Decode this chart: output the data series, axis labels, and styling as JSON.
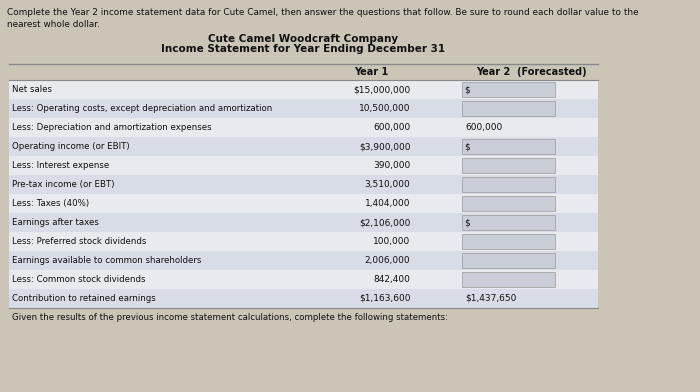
{
  "header_line1": "Complete the Year 2 income statement data for Cute Camel, then answer the questions that follow. Be sure to round each dollar value to the",
  "header_line2": "nearest whole dollar.",
  "company_title": "Cute Camel Woodcraft Company",
  "statement_title": "Income Statement for Year Ending December 31",
  "col_year1": "Year 1",
  "col_year2": "Year 2  (Forecasted)",
  "rows": [
    {
      "label": "Net sales",
      "year1": "$15,000,000",
      "year2": "$",
      "shade": false,
      "box": true,
      "dollar_prefix": true
    },
    {
      "label": "Less: Operating costs, except depreciation and amortization",
      "year1": "10,500,000",
      "year2": "",
      "shade": true,
      "box": true,
      "dollar_prefix": false
    },
    {
      "label": "Less: Depreciation and amortization expenses",
      "year1": "600,000",
      "year2": "600,000",
      "shade": false,
      "box": false,
      "dollar_prefix": false
    },
    {
      "label": "Operating income (or EBIT)",
      "year1": "$3,900,000",
      "year2": "$",
      "shade": true,
      "box": true,
      "dollar_prefix": true
    },
    {
      "label": "Less: Interest expense",
      "year1": "390,000",
      "year2": "",
      "shade": false,
      "box": true,
      "dollar_prefix": false
    },
    {
      "label": "Pre-tax income (or EBT)",
      "year1": "3,510,000",
      "year2": "",
      "shade": true,
      "box": true,
      "dollar_prefix": false
    },
    {
      "label": "Less: Taxes (40%)",
      "year1": "1,404,000",
      "year2": "",
      "shade": false,
      "box": true,
      "dollar_prefix": false
    },
    {
      "label": "Earnings after taxes",
      "year1": "$2,106,000",
      "year2": "$",
      "shade": true,
      "box": true,
      "dollar_prefix": true
    },
    {
      "label": "Less: Preferred stock dividends",
      "year1": "100,000",
      "year2": "",
      "shade": false,
      "box": true,
      "dollar_prefix": false
    },
    {
      "label": "Earnings available to common shareholders",
      "year1": "2,006,000",
      "year2": "",
      "shade": true,
      "box": true,
      "dollar_prefix": false
    },
    {
      "label": "Less: Common stock dividends",
      "year1": "842,400",
      "year2": "",
      "shade": false,
      "box": true,
      "dollar_prefix": false
    },
    {
      "label": "Contribution to retained earnings",
      "year1": "$1,163,600",
      "year2": "$1,437,650",
      "shade": true,
      "box": false,
      "dollar_prefix": false
    }
  ],
  "footer_text": "Given the results of the previous income statement calculations, complete the following statements:",
  "bg_color": "#cbc5b8",
  "white_bg": "#f0ede8",
  "shade_color": "#d8dce6",
  "noshade_color": "#e8eaf0",
  "input_box_color": "#c8cdd8",
  "border_color": "#888888",
  "text_color": "#111111"
}
